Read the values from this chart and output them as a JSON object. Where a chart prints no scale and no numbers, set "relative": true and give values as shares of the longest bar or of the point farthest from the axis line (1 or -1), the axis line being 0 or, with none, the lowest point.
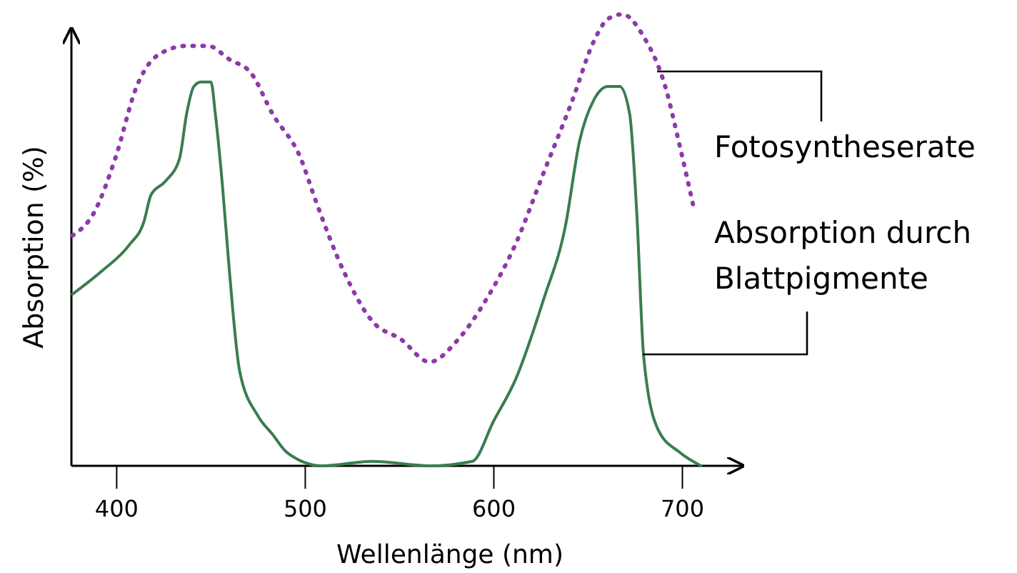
{
  "chart_data": {
    "type": "line",
    "relative": true,
    "xlabel": "Wellenlänge (nm)",
    "ylabel": "Absorption (%)",
    "xlim": [
      376,
      732
    ],
    "xticks": [
      400,
      500,
      600,
      700
    ],
    "grid": false,
    "series": [
      {
        "name": "Fotosyntheserate",
        "color": "#8e3aa8",
        "line_style": "dotted",
        "x": [
          376.5,
          387.9,
          399.2,
          410.6,
          422.0,
          437.1,
          448.5,
          459.8,
          471.2,
          482.6,
          497.7,
          505.3,
          520.5,
          535.6,
          550.8,
          565.9,
          581.1,
          596.2,
          611.4,
          626.5,
          641.7,
          653.0,
          660.6,
          668.2,
          679.5,
          690.9,
          698.5,
          706.1
        ],
        "values": [
          0.51,
          0.56,
          0.68,
          0.84,
          0.91,
          0.93,
          0.93,
          0.9,
          0.87,
          0.78,
          0.68,
          0.59,
          0.43,
          0.32,
          0.28,
          0.23,
          0.28,
          0.37,
          0.49,
          0.65,
          0.81,
          0.94,
          0.99,
          1,
          0.95,
          0.84,
          0.71,
          0.57
        ]
      },
      {
        "name": "Absorption durch Blattpigmente",
        "color": "#3a7d50",
        "line_style": "solid",
        "x": [
          376.5,
          391.7,
          406.8,
          414.4,
          418.2,
          425.8,
          433.3,
          437.1,
          440.9,
          444.7,
          450.0,
          452.3,
          456.1,
          459.8,
          465.2,
          475.0,
          482.6,
          490.2,
          509.1,
          535.6,
          565.9,
          588.6,
          600.0,
          611.4,
          626.5,
          637.9,
          645.5,
          653.0,
          660.6,
          666.7,
          672.0,
          675.8,
          679.5,
          687.1,
          698.5,
          709.8
        ],
        "values": [
          0.38,
          0.43,
          0.49,
          0.54,
          0.6,
          0.63,
          0.68,
          0.78,
          0.84,
          0.85,
          0.85,
          0.78,
          0.62,
          0.43,
          0.21,
          0.11,
          0.07,
          0.03,
          0,
          0.01,
          0,
          0.01,
          0.1,
          0.19,
          0.37,
          0.53,
          0.72,
          0.81,
          0.84,
          0.84,
          0.78,
          0.56,
          0.24,
          0.08,
          0.03,
          0
        ]
      }
    ]
  }
}
